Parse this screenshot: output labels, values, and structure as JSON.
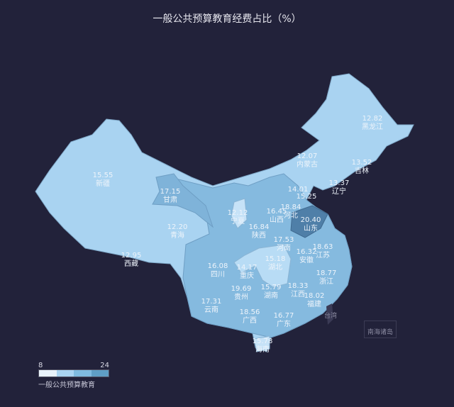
{
  "title": "一般公共预算教育经费占比（%）",
  "colors": {
    "background": "#22223a",
    "low": "#a9d3f1",
    "mid": "#85badf",
    "high": "#6a9fca",
    "top": "#4f7fa8"
  },
  "legend": {
    "min": "8",
    "max": "24",
    "name": "一般公共预算教育",
    "swatches": [
      "#e8f2fb",
      "#a9d3f1",
      "#7fbbe0",
      "#5f9fc6"
    ]
  },
  "provinces": [
    {
      "name": "新疆",
      "value": "15.55"
    },
    {
      "name": "甘肃",
      "value": "17.15"
    },
    {
      "name": "青海",
      "value": "12.20"
    },
    {
      "name": "西藏",
      "value": "12.95"
    },
    {
      "name": "内蒙古",
      "value": "12.07"
    },
    {
      "name": "黑龙江",
      "value": "12.82"
    },
    {
      "name": "吉林",
      "value": "13.52"
    },
    {
      "name": "辽宁",
      "value": "13.37"
    },
    {
      "name": "北京",
      "value": "14.01"
    },
    {
      "name": "天津",
      "value": "15.25"
    },
    {
      "name": "河北",
      "value": "18.84"
    },
    {
      "name": "山西",
      "value": "16.45"
    },
    {
      "name": "宁夏",
      "value": "12.12"
    },
    {
      "name": "陕西",
      "value": "16.84"
    },
    {
      "name": "山东",
      "value": "20.40"
    },
    {
      "name": "河南",
      "value": "17.53"
    },
    {
      "name": "江苏",
      "value": "18.63"
    },
    {
      "name": "安徽",
      "value": "16.32"
    },
    {
      "name": "四川",
      "value": "16.08"
    },
    {
      "name": "重庆",
      "value": "14.17"
    },
    {
      "name": "湖北",
      "value": "15.18"
    },
    {
      "name": "浙江",
      "value": "18.77"
    },
    {
      "name": "贵州",
      "value": "19.69"
    },
    {
      "name": "湖南",
      "value": "15.79"
    },
    {
      "name": "江西",
      "value": "18.33"
    },
    {
      "name": "福建",
      "value": "18.02"
    },
    {
      "name": "云南",
      "value": "17.31"
    },
    {
      "name": "广西",
      "value": "18.56"
    },
    {
      "name": "广东",
      "value": "16.77"
    },
    {
      "name": "海南",
      "value": "15.78"
    }
  ],
  "extras": {
    "taiwan": "台湾",
    "south_sea": "南海诸岛"
  }
}
